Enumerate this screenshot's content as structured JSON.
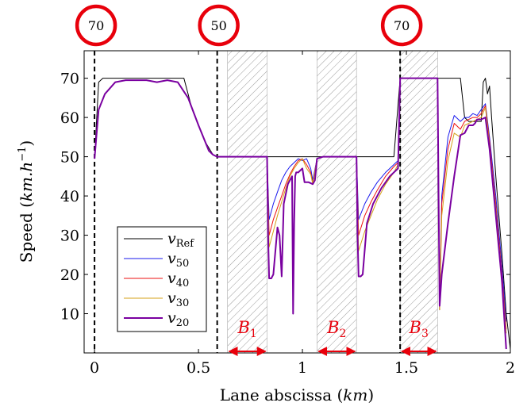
{
  "chart_data": {
    "type": "line",
    "xlabel": "Lane abscissa (km)",
    "ylabel": "Speed (km.h⁻¹)",
    "xlim": [
      -0.05,
      2.0
    ],
    "ylim": [
      0,
      77
    ],
    "x_ticks": [
      0,
      0.5,
      1,
      1.5,
      2
    ],
    "x_tick_labels": [
      "0",
      "0.5",
      "1",
      "1.5",
      "2"
    ],
    "y_ticks": [
      10,
      20,
      30,
      40,
      50,
      60,
      70
    ],
    "y_tick_labels": [
      "10",
      "20",
      "30",
      "40",
      "50",
      "60",
      "70"
    ],
    "grid": false,
    "legend_position": "bottom-left",
    "speed_signs": [
      {
        "x": 0.0,
        "label": "70"
      },
      {
        "x": 0.59,
        "label": "50"
      },
      {
        "x": 1.47,
        "label": "70"
      }
    ],
    "dashed_lines_x": [
      0.0,
      0.59,
      1.47
    ],
    "shaded_zones": [
      {
        "x0": 0.64,
        "x1": 0.83,
        "label_main": "B",
        "label_sub": "1"
      },
      {
        "x0": 1.07,
        "x1": 1.26,
        "label_main": "B",
        "label_sub": "2"
      },
      {
        "x0": 1.47,
        "x1": 1.65,
        "label_main": "B",
        "label_sub": "3"
      }
    ],
    "colors": {
      "zone_label": "#e8000b",
      "sign_ring": "#e8000b",
      "hatch": "#9a9a9a"
    },
    "series": [
      {
        "name": "v_Ref",
        "name_main": "v",
        "name_sub": "Ref",
        "color": "#000000",
        "width": 1,
        "x": [
          0.0,
          0.02,
          0.04,
          0.1,
          0.2,
          0.3,
          0.35,
          0.43,
          0.47,
          0.53,
          0.57,
          0.59,
          0.62,
          0.7,
          0.8,
          0.83,
          0.9,
          1.0,
          1.07,
          1.1,
          1.2,
          1.26,
          1.35,
          1.4,
          1.44,
          1.47,
          1.5,
          1.6,
          1.72,
          1.76,
          1.78,
          1.8,
          1.82,
          1.86,
          1.87,
          1.88,
          1.89,
          1.9,
          1.91,
          1.93,
          1.96,
          1.98,
          2.0
        ],
        "y": [
          49.5,
          69,
          70,
          70,
          70,
          70,
          70,
          70,
          62,
          54,
          50.5,
          50,
          50,
          50,
          50,
          50,
          50,
          50,
          50,
          50,
          50,
          50,
          50,
          50,
          50,
          70,
          70,
          70,
          70,
          70,
          60,
          59,
          59,
          59,
          69,
          70,
          66,
          68,
          60,
          45,
          25,
          10,
          1
        ]
      },
      {
        "name": "v_50",
        "name_main": "v",
        "name_sub": "50",
        "color": "#1a1aee",
        "width": 1,
        "x": [
          0.0,
          0.02,
          0.05,
          0.1,
          0.15,
          0.2,
          0.25,
          0.3,
          0.35,
          0.4,
          0.45,
          0.5,
          0.55,
          0.57,
          0.59,
          0.62,
          0.7,
          0.78,
          0.83,
          0.84,
          0.86,
          0.88,
          0.9,
          0.92,
          0.94,
          0.96,
          0.98,
          1.0,
          1.02,
          1.04,
          1.05,
          1.07,
          1.1,
          1.2,
          1.26,
          1.27,
          1.3,
          1.33,
          1.36,
          1.4,
          1.44,
          1.46,
          1.47,
          1.55,
          1.6,
          1.65,
          1.66,
          1.67,
          1.7,
          1.73,
          1.76,
          1.78,
          1.8,
          1.82,
          1.84,
          1.86,
          1.88,
          1.9,
          1.93,
          1.96,
          1.98
        ],
        "y": [
          49.5,
          62,
          66,
          69,
          69.5,
          69.5,
          69.5,
          69,
          69.5,
          69,
          65,
          58,
          51.5,
          50.5,
          50,
          50,
          50,
          50,
          50,
          34,
          38,
          41,
          44,
          46,
          47.5,
          48.5,
          49.5,
          49,
          49.5,
          47,
          44,
          49.5,
          50,
          50,
          50,
          34,
          38,
          41,
          43.5,
          46,
          48,
          49,
          70,
          70,
          70,
          70,
          11,
          40,
          55,
          60.5,
          59,
          60,
          60,
          61,
          60.5,
          62,
          63.5,
          55,
          40,
          22,
          8
        ]
      },
      {
        "name": "v_40",
        "name_main": "v",
        "name_sub": "40",
        "color": "#ee1111",
        "width": 1,
        "x": [
          0.0,
          0.02,
          0.05,
          0.1,
          0.15,
          0.2,
          0.25,
          0.3,
          0.35,
          0.4,
          0.45,
          0.5,
          0.55,
          0.57,
          0.59,
          0.62,
          0.7,
          0.78,
          0.83,
          0.84,
          0.86,
          0.88,
          0.9,
          0.92,
          0.94,
          0.96,
          0.98,
          1.0,
          1.02,
          1.04,
          1.05,
          1.07,
          1.1,
          1.2,
          1.26,
          1.27,
          1.3,
          1.33,
          1.36,
          1.4,
          1.44,
          1.46,
          1.47,
          1.55,
          1.6,
          1.65,
          1.66,
          1.67,
          1.7,
          1.73,
          1.76,
          1.78,
          1.8,
          1.82,
          1.84,
          1.86,
          1.88,
          1.9,
          1.93,
          1.96,
          1.98
        ],
        "y": [
          49.5,
          62,
          66,
          69,
          69.5,
          69.5,
          69.5,
          69,
          69.5,
          69,
          65,
          58,
          51.5,
          50.5,
          50,
          50,
          50,
          50,
          50,
          30,
          34,
          37,
          40,
          43,
          45.5,
          47.5,
          49,
          49.5,
          48,
          46,
          43,
          49.5,
          50,
          50,
          50,
          30,
          35,
          38.5,
          41.5,
          45,
          47.5,
          48.5,
          70,
          70,
          70,
          70,
          11,
          38,
          52,
          58.5,
          57,
          59,
          59.5,
          60,
          60,
          61,
          63,
          54,
          38,
          20,
          6
        ]
      },
      {
        "name": "v_30",
        "name_main": "v",
        "name_sub": "30",
        "color": "#d4a017",
        "width": 1,
        "x": [
          0.0,
          0.02,
          0.05,
          0.1,
          0.15,
          0.2,
          0.25,
          0.3,
          0.35,
          0.4,
          0.45,
          0.5,
          0.55,
          0.57,
          0.59,
          0.62,
          0.7,
          0.78,
          0.83,
          0.84,
          0.86,
          0.88,
          0.9,
          0.92,
          0.94,
          0.96,
          0.98,
          1.0,
          1.02,
          1.04,
          1.05,
          1.07,
          1.1,
          1.2,
          1.26,
          1.27,
          1.3,
          1.33,
          1.36,
          1.4,
          1.44,
          1.46,
          1.47,
          1.55,
          1.6,
          1.65,
          1.66,
          1.67,
          1.7,
          1.73,
          1.76,
          1.78,
          1.8,
          1.82,
          1.84,
          1.86,
          1.88,
          1.9,
          1.93,
          1.96,
          1.98
        ],
        "y": [
          49.5,
          62,
          66,
          69,
          69.5,
          69.5,
          69.5,
          69,
          69.5,
          69,
          65,
          58,
          51.5,
          50.5,
          50,
          50,
          50,
          50,
          50,
          27,
          31,
          35,
          38.5,
          42,
          45,
          47,
          48.5,
          49.5,
          47,
          45.5,
          43,
          49.5,
          50,
          50,
          50,
          26,
          31,
          35,
          39,
          43,
          46,
          48,
          70,
          70,
          70,
          70,
          11,
          35,
          49,
          56,
          55,
          58,
          58.5,
          59,
          59.5,
          60,
          62.5,
          53,
          37,
          19,
          5
        ]
      },
      {
        "name": "v_20",
        "name_main": "v",
        "name_sub": "20",
        "color": "#7a00a0",
        "width": 2,
        "x": [
          0.0,
          0.02,
          0.05,
          0.1,
          0.15,
          0.2,
          0.25,
          0.3,
          0.35,
          0.4,
          0.45,
          0.5,
          0.55,
          0.57,
          0.59,
          0.62,
          0.7,
          0.78,
          0.83,
          0.835,
          0.84,
          0.85,
          0.86,
          0.88,
          0.89,
          0.9,
          0.91,
          0.93,
          0.95,
          0.955,
          0.96,
          0.965,
          0.97,
          0.98,
          1.0,
          1.01,
          1.03,
          1.05,
          1.06,
          1.07,
          1.1,
          1.2,
          1.26,
          1.265,
          1.27,
          1.28,
          1.29,
          1.31,
          1.34,
          1.38,
          1.42,
          1.46,
          1.47,
          1.55,
          1.6,
          1.65,
          1.655,
          1.66,
          1.67,
          1.7,
          1.73,
          1.75,
          1.76,
          1.78,
          1.8,
          1.82,
          1.83,
          1.84,
          1.86,
          1.88,
          1.9,
          1.93,
          1.96,
          1.98
        ],
        "y": [
          49.5,
          62,
          66,
          69,
          69.5,
          69.5,
          69.5,
          69,
          69.5,
          69,
          65,
          58,
          51.5,
          50.5,
          50,
          50,
          50,
          50,
          50,
          30,
          19,
          19,
          20,
          32,
          30,
          19.5,
          38,
          43,
          45,
          10,
          33,
          45,
          46,
          46,
          47,
          43.5,
          43.5,
          43,
          44,
          49.5,
          50,
          50,
          50,
          30,
          19.5,
          19.5,
          20,
          33,
          38,
          42,
          45,
          47,
          70,
          70,
          70,
          70,
          40,
          12,
          20,
          33,
          45,
          52,
          55.5,
          56,
          58,
          58,
          58.5,
          59.5,
          59.5,
          60,
          52,
          35,
          18,
          1
        ]
      }
    ]
  }
}
